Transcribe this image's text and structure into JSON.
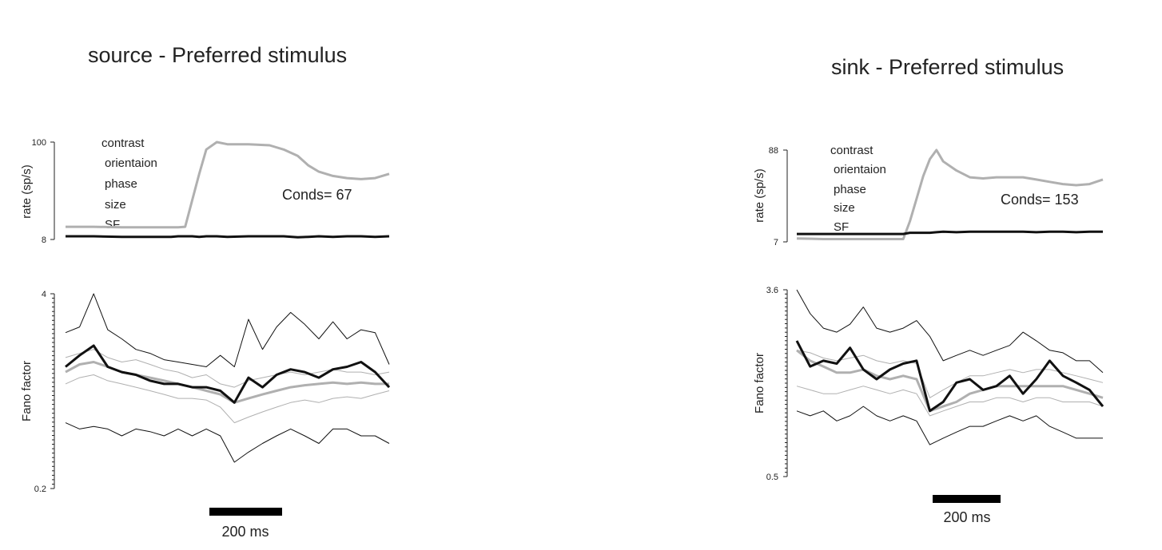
{
  "chart_data": [
    {
      "type": "line",
      "title": "source - Preferred stimulus",
      "params_list": [
        "contrast",
        "orientaion",
        "phase",
        "size",
        "SF"
      ],
      "annotation": "Conds= 67",
      "scale_bar_label": "200 ms",
      "rate": {
        "ylabel": "rate (sp/s)",
        "ylim": [
          8,
          100
        ],
        "tick_labels": [
          "100",
          "8"
        ],
        "x": [
          0,
          40,
          80,
          120,
          150,
          160,
          170,
          180,
          190,
          200,
          215,
          230,
          260,
          290,
          310,
          330,
          345,
          360,
          380,
          400,
          420,
          440,
          460
        ],
        "series": [
          {
            "name": "",
            "color": "#b0b0b0",
            "values": [
              20,
              20,
              19.5,
              19.5,
              19.5,
              19.5,
              20,
              45,
              70,
              93,
              100,
              98,
              98,
              97,
              93,
              87,
              78,
              72,
              68,
              66,
              65,
              66,
              70
            ]
          },
          {
            "name": "",
            "color": "#111111",
            "values": [
              11,
              11,
              10.5,
              10.5,
              10.5,
              11,
              11,
              11,
              10.5,
              11,
              11,
              10.5,
              11,
              11,
              11,
              10,
              10.5,
              11,
              10.5,
              11,
              11,
              10.5,
              11
            ]
          }
        ]
      },
      "fano": {
        "ylabel": "Fano factor",
        "ylim": [
          0.2,
          4
        ],
        "tick_labels": [
          "4",
          "0.2"
        ],
        "x": [
          0,
          20,
          40,
          60,
          80,
          100,
          120,
          140,
          160,
          180,
          200,
          220,
          240,
          260,
          280,
          300,
          320,
          340,
          360,
          380,
          400,
          420,
          440,
          460
        ],
        "series": [
          {
            "name": "",
            "color": "#111111",
            "width": 1,
            "values": [
              2.2,
              2.4,
              4.0,
              2.3,
              2.0,
              1.7,
              1.6,
              1.45,
              1.4,
              1.35,
              1.3,
              1.55,
              1.3,
              2.7,
              1.7,
              2.4,
              3.0,
              2.5,
              2.0,
              2.6,
              2.0,
              2.3,
              2.2,
              1.35
            ]
          },
          {
            "name": "",
            "color": "#b0b0b0",
            "width": 1,
            "values": [
              1.5,
              1.6,
              1.7,
              1.5,
              1.4,
              1.45,
              1.35,
              1.25,
              1.2,
              1.1,
              1.15,
              1.0,
              0.95,
              1.05,
              1.1,
              1.15,
              1.2,
              1.15,
              1.2,
              1.25,
              1.2,
              1.2,
              1.15,
              1.2
            ]
          },
          {
            "name": "",
            "color": "#b0b0b0",
            "width": 1,
            "values": [
              1.0,
              1.1,
              1.15,
              1.05,
              1.0,
              0.95,
              0.9,
              0.85,
              0.8,
              0.8,
              0.78,
              0.7,
              0.55,
              0.6,
              0.65,
              0.7,
              0.75,
              0.78,
              0.75,
              0.8,
              0.82,
              0.8,
              0.85,
              0.9
            ]
          },
          {
            "name": "",
            "color": "#b0b0b0",
            "width": 3,
            "values": [
              1.2,
              1.35,
              1.4,
              1.3,
              1.2,
              1.15,
              1.1,
              1.05,
              1.0,
              0.95,
              0.9,
              0.85,
              0.75,
              0.8,
              0.85,
              0.9,
              0.95,
              0.98,
              1.0,
              1.02,
              1.0,
              1.02,
              1.0,
              1.0
            ]
          },
          {
            "name": "",
            "color": "#111111",
            "width": 3,
            "values": [
              1.3,
              1.55,
              1.8,
              1.3,
              1.2,
              1.15,
              1.05,
              1.0,
              1.0,
              0.95,
              0.95,
              0.9,
              0.75,
              1.1,
              0.95,
              1.15,
              1.25,
              1.2,
              1.1,
              1.25,
              1.3,
              1.4,
              1.2,
              0.95
            ]
          },
          {
            "name": "",
            "color": "#111111",
            "width": 1,
            "values": [
              0.55,
              0.5,
              0.52,
              0.5,
              0.45,
              0.5,
              0.48,
              0.45,
              0.5,
              0.45,
              0.5,
              0.45,
              0.3,
              0.35,
              0.4,
              0.45,
              0.5,
              0.45,
              0.4,
              0.5,
              0.5,
              0.45,
              0.45,
              0.4
            ]
          }
        ]
      }
    },
    {
      "type": "line",
      "title": "sink - Preferred stimulus",
      "params_list": [
        "contrast",
        "orientaion",
        "phase",
        "size",
        "SF"
      ],
      "annotation": "Conds= 153",
      "scale_bar_label": "200 ms",
      "rate": {
        "ylabel": "rate (sp/s)",
        "ylim": [
          7,
          88
        ],
        "tick_labels": [
          "88",
          "7"
        ],
        "x": [
          0,
          40,
          80,
          120,
          160,
          170,
          180,
          190,
          200,
          210,
          220,
          240,
          260,
          280,
          300,
          320,
          340,
          360,
          380,
          400,
          420,
          440,
          460
        ],
        "series": [
          {
            "name": "",
            "color": "#b0b0b0",
            "values": [
              10,
              9.5,
              9.5,
              9.5,
              9.5,
              25,
              45,
              65,
              80,
              88,
              78,
              70,
              64,
              63,
              64,
              64,
              64,
              62,
              60,
              58,
              57,
              58,
              62
            ]
          },
          {
            "name": "",
            "color": "#111111",
            "values": [
              14,
              14,
              14,
              14,
              14,
              15,
              15,
              15,
              15,
              15.5,
              16,
              15.5,
              16,
              16,
              16,
              16,
              16,
              15.5,
              16,
              16,
              15.5,
              16,
              16
            ]
          }
        ]
      },
      "fano": {
        "ylabel": "Fano factor",
        "ylim": [
          0.5,
          3.6
        ],
        "tick_labels": [
          "3.6",
          "0.5"
        ],
        "x": [
          0,
          20,
          40,
          60,
          80,
          100,
          120,
          140,
          160,
          180,
          200,
          220,
          240,
          260,
          280,
          300,
          320,
          340,
          360,
          380,
          400,
          420,
          440,
          460
        ],
        "series": [
          {
            "name": "",
            "color": "#111111",
            "width": 1,
            "values": [
              3.6,
              2.8,
              2.4,
              2.3,
              2.5,
              3.0,
              2.4,
              2.3,
              2.4,
              2.6,
              2.2,
              1.7,
              1.8,
              1.9,
              1.8,
              1.9,
              2.0,
              2.3,
              2.1,
              1.9,
              1.85,
              1.7,
              1.7,
              1.5
            ]
          },
          {
            "name": "",
            "color": "#b0b0b0",
            "width": 1,
            "values": [
              1.9,
              1.85,
              1.75,
              1.7,
              1.75,
              1.8,
              1.7,
              1.65,
              1.7,
              1.65,
              1.15,
              1.25,
              1.35,
              1.45,
              1.45,
              1.5,
              1.55,
              1.5,
              1.55,
              1.55,
              1.5,
              1.45,
              1.4,
              1.35
            ]
          },
          {
            "name": "",
            "color": "#b0b0b0",
            "width": 1,
            "values": [
              1.3,
              1.25,
              1.2,
              1.2,
              1.25,
              1.3,
              1.25,
              1.2,
              1.25,
              1.2,
              0.95,
              1.0,
              1.05,
              1.1,
              1.1,
              1.15,
              1.15,
              1.1,
              1.15,
              1.15,
              1.1,
              1.1,
              1.1,
              1.05
            ]
          },
          {
            "name": "",
            "color": "#b0b0b0",
            "width": 3,
            "values": [
              1.9,
              1.7,
              1.6,
              1.5,
              1.5,
              1.55,
              1.45,
              1.4,
              1.45,
              1.4,
              1.0,
              1.05,
              1.1,
              1.2,
              1.25,
              1.3,
              1.3,
              1.3,
              1.3,
              1.3,
              1.3,
              1.25,
              1.2,
              1.15
            ]
          },
          {
            "name": "",
            "color": "#111111",
            "width": 3,
            "values": [
              2.1,
              1.6,
              1.7,
              1.65,
              1.95,
              1.55,
              1.4,
              1.55,
              1.65,
              1.7,
              1.0,
              1.1,
              1.35,
              1.4,
              1.25,
              1.3,
              1.45,
              1.2,
              1.4,
              1.7,
              1.45,
              1.35,
              1.25,
              1.05
            ]
          },
          {
            "name": "",
            "color": "#111111",
            "width": 1,
            "values": [
              1.0,
              0.95,
              1.0,
              0.9,
              0.95,
              1.05,
              0.95,
              0.9,
              0.95,
              0.9,
              0.7,
              0.75,
              0.8,
              0.85,
              0.85,
              0.9,
              0.95,
              0.9,
              0.95,
              0.85,
              0.8,
              0.75,
              0.75,
              0.75
            ]
          }
        ]
      }
    }
  ]
}
